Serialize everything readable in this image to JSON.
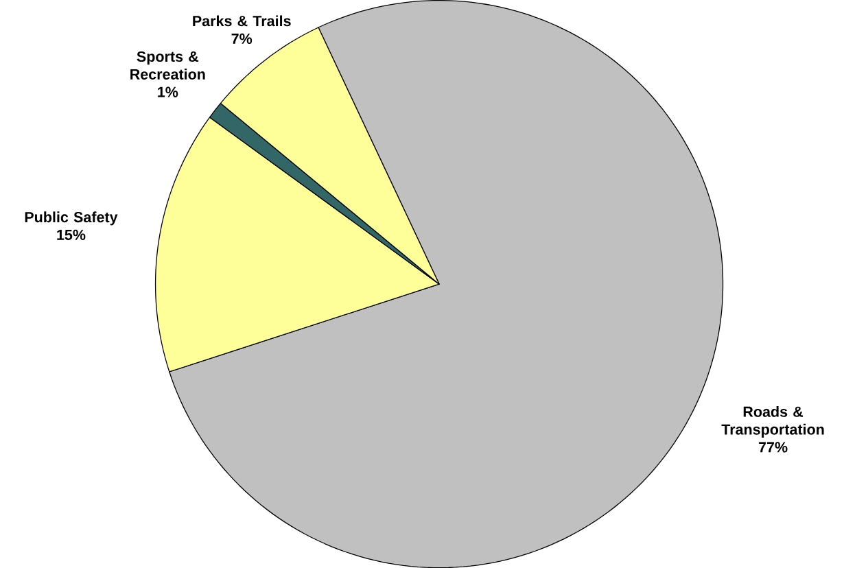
{
  "chart_data": {
    "type": "pie",
    "categories": [
      "Roads & Transportation",
      "Public Safety",
      "Sports & Recreation",
      "Parks & Trails"
    ],
    "values": [
      77,
      15,
      1,
      7
    ],
    "value_labels": [
      "77%",
      "15%",
      "1%",
      "7%"
    ],
    "colors": [
      "#c0c0c0",
      "#ffff99",
      "#336666",
      "#ffff99"
    ]
  }
}
